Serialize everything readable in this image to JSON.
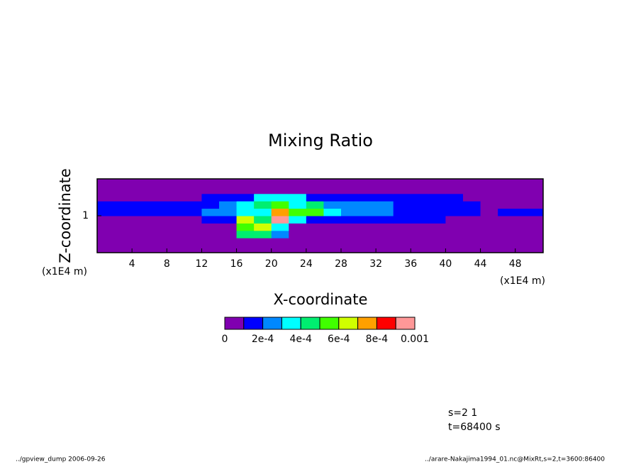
{
  "chart_data": {
    "type": "contour",
    "title": "Mixing Ratio",
    "xlabel": "X-coordinate",
    "ylabel": "Z-coordinate",
    "xunit": "(x1E4 m)",
    "yunit": "(x1E4 m)",
    "xlim": [
      0,
      51.2
    ],
    "ylim": [
      0,
      2
    ],
    "xticks": [
      4,
      8,
      12,
      16,
      20,
      24,
      28,
      32,
      36,
      40,
      44,
      48
    ],
    "yticks": [
      1
    ],
    "x": [
      1,
      3,
      5,
      7,
      9,
      11,
      13,
      15,
      17,
      19,
      21,
      23,
      25,
      27,
      29,
      31,
      33,
      35,
      37,
      39,
      41,
      43,
      45,
      47,
      49,
      51
    ],
    "z": [
      0.1,
      0.3,
      0.5,
      0.7,
      0.9,
      1.1,
      1.3,
      1.5,
      1.7,
      1.9
    ],
    "values": [
      [
        0,
        0,
        0,
        0,
        0,
        0,
        0,
        0,
        0,
        0,
        0,
        0,
        0,
        0,
        0,
        0,
        0,
        0,
        0,
        0,
        0,
        0,
        0,
        0,
        0,
        0
      ],
      [
        0,
        0,
        0,
        0,
        0,
        0,
        0,
        0,
        0,
        0,
        0,
        0,
        0,
        0,
        0,
        0,
        0,
        0,
        0,
        0,
        0,
        0,
        0,
        0,
        0,
        0
      ],
      [
        0,
        0,
        0,
        0,
        0,
        0,
        0,
        0,
        0.00045,
        0.00045,
        0.0002,
        0,
        0,
        0,
        0,
        0,
        0,
        0,
        0,
        0,
        0,
        0,
        0,
        0,
        0,
        0
      ],
      [
        0,
        0,
        0,
        0,
        0,
        0,
        0,
        0,
        0.0005,
        0.0006,
        0.0003,
        0,
        0,
        0,
        0,
        0,
        0,
        0,
        0,
        0,
        0,
        0,
        0,
        0,
        0,
        0
      ],
      [
        0,
        0,
        0,
        0,
        0,
        0,
        0.00012,
        0.00012,
        0.0006,
        0.0004,
        0.0009,
        0.0003,
        0.00012,
        0.00012,
        0.00012,
        0.00012,
        0.00012,
        0.00012,
        0.00012,
        0.00012,
        0,
        0,
        0,
        0,
        0,
        0
      ],
      [
        0.00015,
        0.00015,
        0.00015,
        0.00015,
        0.00015,
        0.00015,
        0.00025,
        0.00025,
        0.0003,
        0.0003,
        0.0007,
        0.0005,
        0.0005,
        0.0003,
        0.00025,
        0.00025,
        0.00025,
        0.00015,
        0.00015,
        0.00015,
        0.00015,
        0.00015,
        5e-05,
        0.00015,
        0.00015,
        0.00015
      ],
      [
        0.00015,
        0.00015,
        0.00015,
        0.00015,
        0.00015,
        0.00015,
        0.00015,
        0.0002,
        0.00035,
        0.0004,
        0.0005,
        0.00035,
        0.0004,
        0.00025,
        0.0002,
        0.0002,
        0.0002,
        0.00015,
        0.00015,
        0.00015,
        0.00015,
        0.00012,
        5e-05,
        5e-05,
        5e-05,
        5e-05
      ],
      [
        0,
        0,
        0,
        0,
        0,
        0,
        0.00012,
        0.00012,
        0.00012,
        0.0003,
        0.0003,
        0.0003,
        0.00012,
        0.00012,
        0.00012,
        0.00012,
        0.00012,
        0.00012,
        0.00012,
        0.00012,
        0.00012,
        0,
        0,
        0,
        0,
        0
      ],
      [
        0,
        0,
        0,
        0,
        0,
        0,
        0,
        0,
        0,
        0,
        0,
        0,
        0,
        0,
        0,
        0,
        0,
        0,
        0,
        0,
        0,
        0,
        0,
        0,
        0,
        0
      ],
      [
        0,
        0,
        0,
        0,
        0,
        0,
        0,
        0,
        0,
        0,
        0,
        0,
        0,
        0,
        0,
        0,
        0,
        0,
        0,
        0,
        0,
        0,
        0,
        0,
        0,
        0
      ]
    ],
    "levels": [
      0,
      0.0001,
      0.0002,
      0.0003,
      0.0004,
      0.0005,
      0.0006,
      0.0007,
      0.0008,
      0.0009,
      0.001
    ],
    "colors": [
      "#8000b0",
      "#0000ff",
      "#0088ff",
      "#00ffff",
      "#00ee70",
      "#40ff00",
      "#d0ff00",
      "#ffa000",
      "#ff0000",
      "#ff9898"
    ],
    "colorbar_ticks": [
      0,
      {
        "value": 0.0002,
        "label": "2e-4"
      },
      {
        "value": 0.0004,
        "label": "4e-4"
      },
      {
        "value": 0.0006,
        "label": "6e-4"
      },
      {
        "value": 0.0008,
        "label": "8e-4"
      },
      0.001
    ],
    "annotations": [
      "s=2 1",
      "t=68400 s"
    ],
    "footer_left": "../gpview_dump  2006-09-26",
    "footer_right": "../arare-Nakajima1994_01.nc@MixRt,s=2,t=3600:86400"
  }
}
